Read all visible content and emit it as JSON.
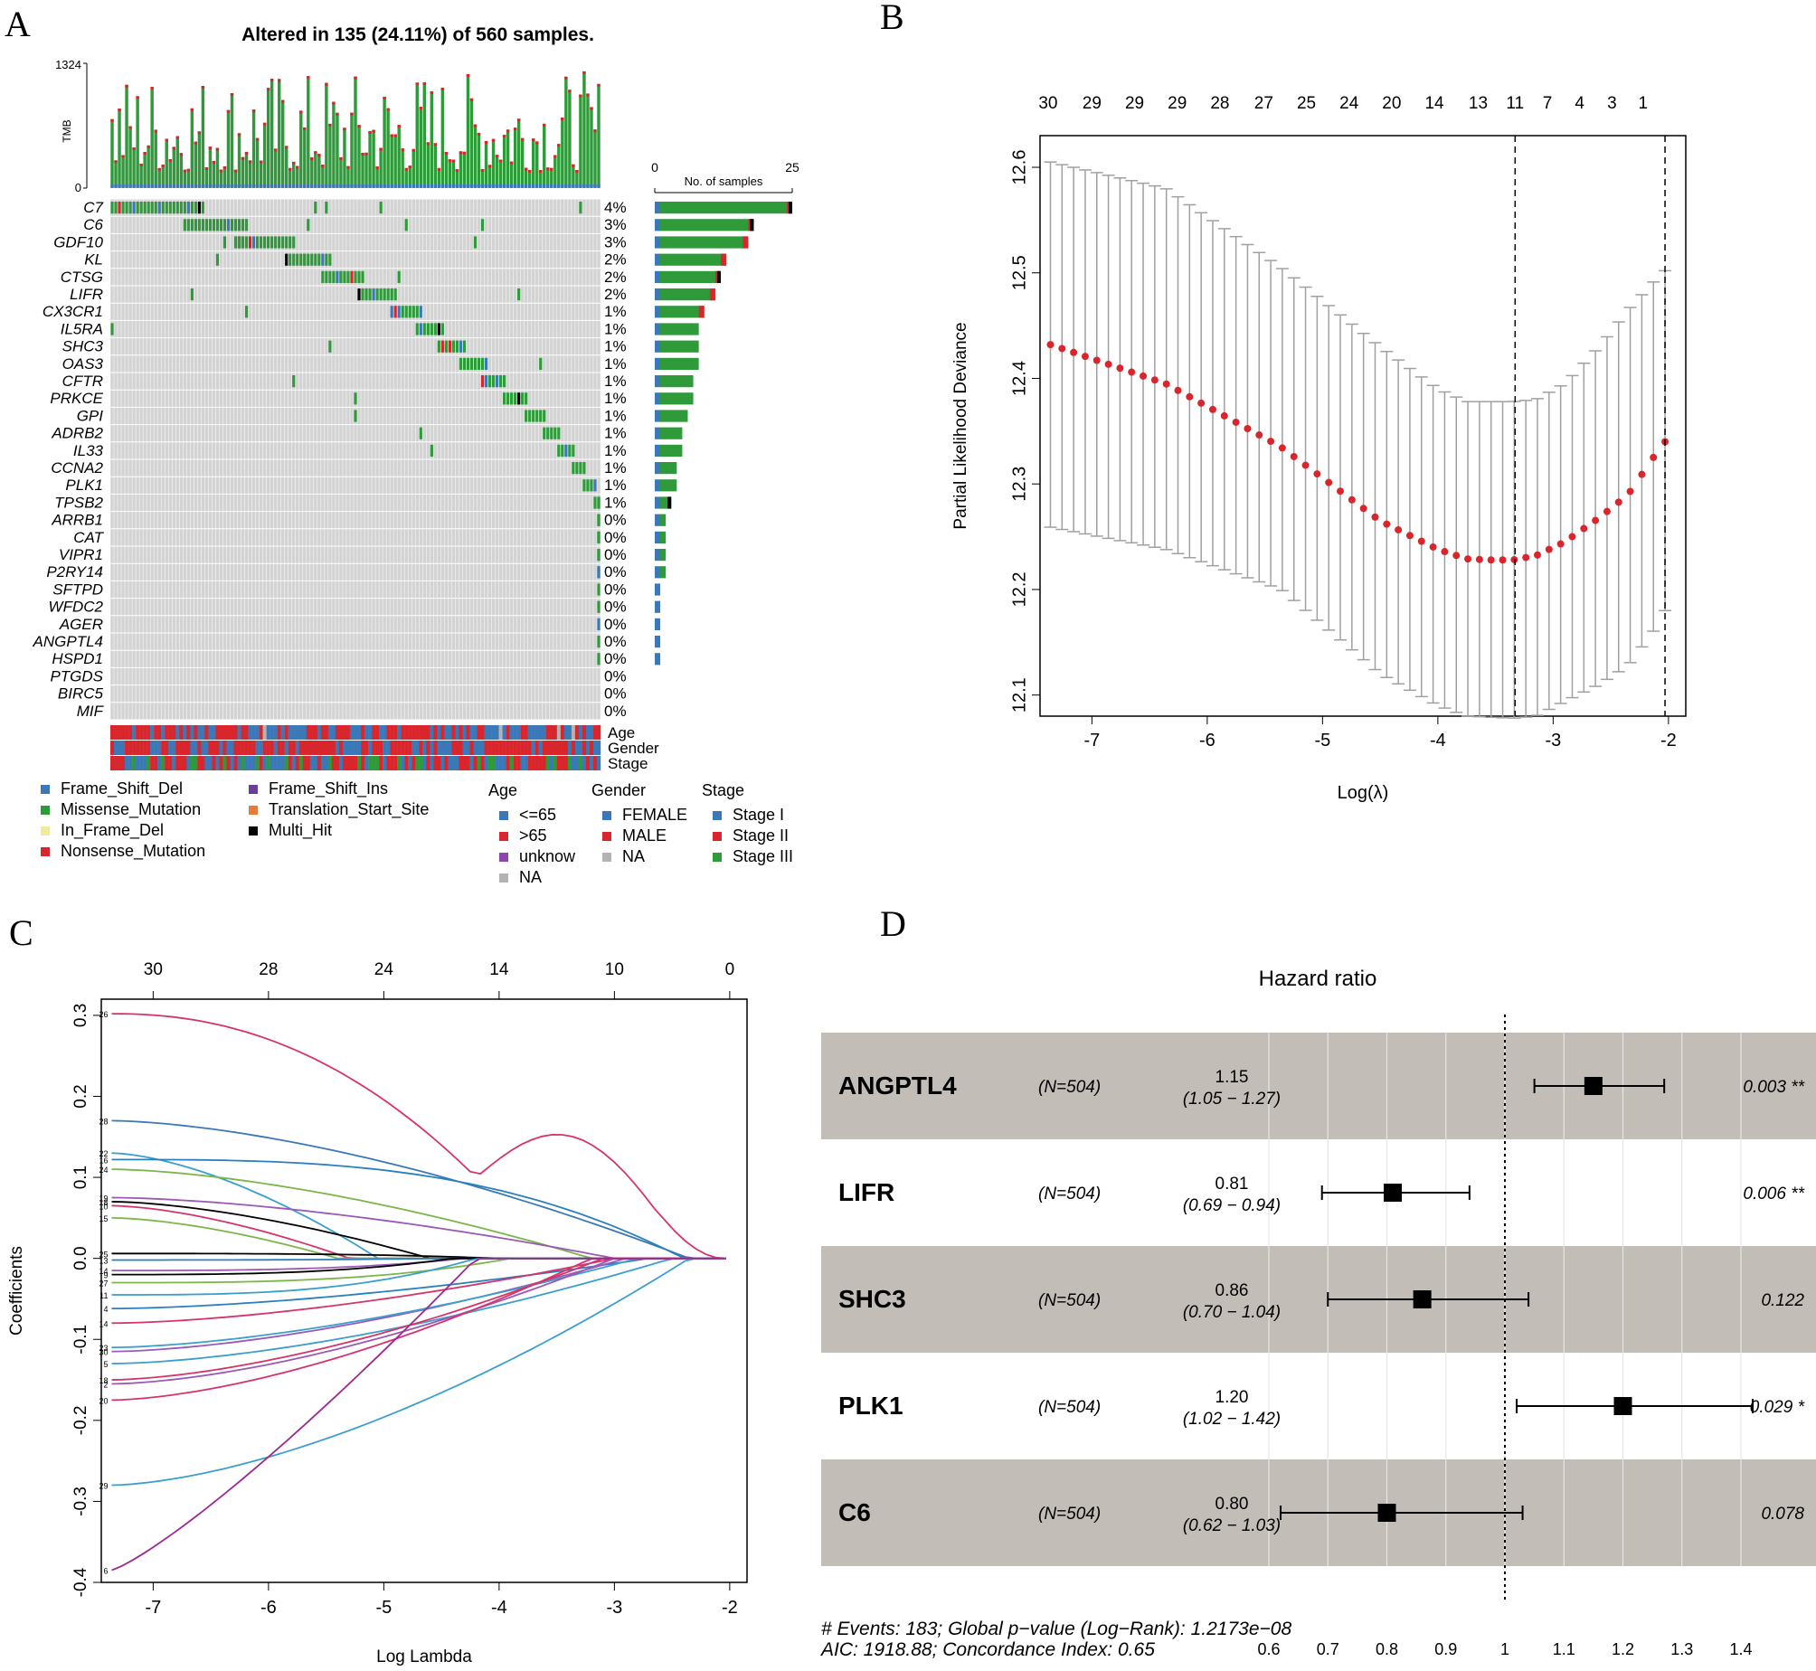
{
  "panel_letters": [
    "A",
    "B",
    "C",
    "D"
  ],
  "colors": {
    "Frame_Shift_Del": "#3a78b8",
    "Missense_Mutation": "#2e9a3a",
    "In_Frame_Del": "#f1ec9c",
    "Nonsense_Mutation": "#d8262c",
    "Frame_Shift_Ins": "#6a3d9a",
    "Translation_Start_Site": "#e67c3a",
    "Multi_Hit": "#000000",
    "grid_bg": "#d3d3d3",
    "age_le65": "#3a78b8",
    "age_gt65": "#d8262c",
    "age_unknow": "#8e44ad",
    "na": "#b3b3b3",
    "female": "#3a78b8",
    "male": "#d8262c",
    "stage1": "#3a78b8",
    "stage2": "#d8262c",
    "stage3": "#2e9a3a",
    "cv_point": "#d8262c",
    "cv_bar": "#a0a0a0",
    "forest_band": "#c2bdb7"
  },
  "chart_data": [
    {
      "panel": "A",
      "type": "heatmap",
      "title": "Altered in 135 (24.11%) of 560 samples.",
      "tmb_label": "TMB",
      "tmb_ticks": [
        "1324",
        "0"
      ],
      "tmb_range": [
        0,
        1324
      ],
      "samples_label": "No. of samples",
      "samples_ticks": [
        "0",
        "25"
      ],
      "samples_range": [
        0,
        25
      ],
      "genes": [
        "C7",
        "C6",
        "GDF10",
        "KL",
        "CTSG",
        "LIFR",
        "CX3CR1",
        "IL5RA",
        "SHC3",
        "OAS3",
        "CFTR",
        "PRKCE",
        "GPI",
        "ADRB2",
        "IL33",
        "CCNA2",
        "PLK1",
        "TPSB2",
        "ARRB1",
        "CAT",
        "VIPR1",
        "P2RY14",
        "SFTPD",
        "WFDC2",
        "AGER",
        "ANGPTL4",
        "HSPD1",
        "PTGDS",
        "BIRC5",
        "MIF"
      ],
      "percents": [
        "4%",
        "3%",
        "3%",
        "2%",
        "2%",
        "2%",
        "1%",
        "1%",
        "1%",
        "1%",
        "1%",
        "1%",
        "1%",
        "1%",
        "1%",
        "1%",
        "1%",
        "1%",
        "0%",
        "0%",
        "0%",
        "0%",
        "0%",
        "0%",
        "0%",
        "0%",
        "0%",
        "0%",
        "0%",
        "0%"
      ],
      "gene_counts": [
        25,
        18,
        17,
        13,
        12,
        11,
        9,
        8,
        8,
        8,
        7,
        7,
        6,
        5,
        5,
        4,
        4,
        3,
        2,
        2,
        2,
        2,
        1,
        1,
        1,
        1,
        1,
        0,
        0,
        0
      ],
      "annotation_tracks": [
        "Age",
        "Gender",
        "Stage"
      ],
      "legend": {
        "variant": [
          "Frame_Shift_Del",
          "Missense_Mutation",
          "In_Frame_Del",
          "Nonsense_Mutation",
          "Frame_Shift_Ins",
          "Translation_Start_Site",
          "Multi_Hit"
        ],
        "age_title": "Age",
        "age": [
          "<=65",
          ">65",
          "unknow",
          "NA"
        ],
        "gender_title": "Gender",
        "gender": [
          "FEMALE",
          "MALE",
          "NA"
        ],
        "stage_title": "Stage",
        "stage": [
          "Stage I",
          "Stage II",
          "Stage III"
        ]
      }
    },
    {
      "panel": "B",
      "type": "scatter",
      "xlabel": "Log(λ)",
      "ylabel": "Partial Likelihood Deviance",
      "xlim": [
        -7.45,
        -1.85
      ],
      "ylim": [
        12.08,
        12.63
      ],
      "x_ticks": [
        "-7",
        "-6",
        "-5",
        "-4",
        "-3",
        "-2"
      ],
      "y_ticks": [
        "12.1",
        "12.2",
        "12.3",
        "12.4",
        "12.5",
        "12.6"
      ],
      "top_ticks": [
        "30",
        "29",
        "29",
        "29",
        "28",
        "27",
        "25",
        "24",
        "20",
        "14",
        "13",
        "11",
        "7",
        "4",
        "3",
        "1"
      ],
      "top_tick_x": [
        -7.38,
        -7.0,
        -6.63,
        -6.26,
        -5.89,
        -5.51,
        -5.14,
        -4.77,
        -4.4,
        -4.03,
        -3.65,
        -3.33,
        -3.05,
        -2.77,
        -2.49,
        -2.22
      ],
      "lambda_min": -3.33,
      "lambda_1se": -2.03,
      "curve": {
        "x": [
          -7.36,
          -6.36,
          -5.36,
          -4.5,
          -4.0,
          -3.75,
          -3.55,
          -3.35,
          -3.15,
          -2.9,
          -2.6,
          -2.35,
          -2.1,
          -2.03
        ],
        "y": [
          12.432,
          12.395,
          12.335,
          12.265,
          12.238,
          12.229,
          12.228,
          12.228,
          12.232,
          12.245,
          12.268,
          12.29,
          12.33,
          12.34
        ],
        "upper": [
          12.605,
          12.58,
          12.505,
          12.43,
          12.39,
          12.378,
          12.378,
          12.378,
          12.38,
          12.395,
          12.43,
          12.465,
          12.495,
          12.502
        ],
        "lower": [
          12.259,
          12.238,
          12.2,
          12.12,
          12.09,
          12.08,
          12.079,
          12.078,
          12.08,
          12.094,
          12.11,
          12.128,
          12.165,
          12.18
        ]
      }
    },
    {
      "panel": "C",
      "type": "line",
      "xlabel": "Log Lambda",
      "ylabel": "Coefficients",
      "xlim": [
        -7.45,
        -1.85
      ],
      "ylim": [
        -0.4,
        0.32
      ],
      "x_ticks": [
        "-7",
        "-6",
        "-5",
        "-4",
        "-3",
        "-2"
      ],
      "y_ticks": [
        "-0.4",
        "-0.3",
        "-0.2",
        "-0.1",
        "0.0",
        "0.1",
        "0.2",
        "0.3"
      ],
      "top_ticks": [
        "30",
        "28",
        "24",
        "14",
        "10",
        "0"
      ],
      "top_tick_x": [
        -7.0,
        -6.0,
        -5.0,
        -4.0,
        -3.0,
        -2.0
      ],
      "series": [
        {
          "name": "26",
          "start": 0.302,
          "end_x": -2.05,
          "color": "#d6336c",
          "shape": "bump"
        },
        {
          "name": "28",
          "start": 0.17,
          "end_x": -2.35,
          "color": "#3a78b8",
          "shape": "decay"
        },
        {
          "name": "22",
          "start": 0.13,
          "end_x": -5.05,
          "color": "#3a9fcf",
          "shape": "decay"
        },
        {
          "name": "16",
          "start": 0.122,
          "end_x": -2.4,
          "color": "#2a7fbf",
          "shape": "flat"
        },
        {
          "name": "24",
          "start": 0.11,
          "end_x": -3.2,
          "color": "#7ab648",
          "shape": "decay"
        },
        {
          "name": "19",
          "start": 0.075,
          "end_x": -3.0,
          "color": "#9b59b6",
          "shape": "decay"
        },
        {
          "name": "18",
          "start": 0.07,
          "end_x": -4.6,
          "color": "#000000",
          "shape": "decay"
        },
        {
          "name": "10",
          "start": 0.065,
          "end_x": -5.3,
          "color": "#d6336c",
          "shape": "decay"
        },
        {
          "name": "15",
          "start": 0.05,
          "end_x": -5.4,
          "color": "#7ab648",
          "shape": "decay"
        },
        {
          "name": "25",
          "start": 0.006,
          "end_x": -4.0,
          "color": "#000000",
          "shape": "flat"
        },
        {
          "name": "13",
          "start": -0.002,
          "end_x": -4.5,
          "color": "#2a7fbf",
          "shape": "flat"
        },
        {
          "name": "14",
          "start": -0.015,
          "end_x": -4.3,
          "color": "#9b59b6",
          "shape": "flat"
        },
        {
          "name": "9",
          "start": -0.02,
          "end_x": -4.4,
          "color": "#000000",
          "shape": "flat"
        },
        {
          "name": "27",
          "start": -0.03,
          "end_x": -3.9,
          "color": "#7ab648",
          "shape": "flat"
        },
        {
          "name": "11",
          "start": -0.045,
          "end_x": -4.2,
          "color": "#3a9fcf",
          "shape": "flat"
        },
        {
          "name": "4",
          "start": -0.062,
          "end_x": -2.7,
          "color": "#2a7fbf",
          "shape": "decay"
        },
        {
          "name": "14",
          "start": -0.08,
          "end_x": -3.0,
          "color": "#d6336c",
          "shape": "decay"
        },
        {
          "name": "30",
          "start": -0.115,
          "end_x": -2.9,
          "color": "#9b59b6",
          "shape": "decay"
        },
        {
          "name": "23",
          "start": -0.11,
          "end_x": -2.8,
          "color": "#3a9fcf",
          "shape": "decay"
        },
        {
          "name": "5",
          "start": -0.13,
          "end_x": -2.5,
          "color": "#3a9fcf",
          "shape": "decay"
        },
        {
          "name": "18",
          "start": -0.15,
          "end_x": -3.1,
          "color": "#d6336c",
          "shape": "decay"
        },
        {
          "name": "2",
          "start": -0.155,
          "end_x": -3.0,
          "color": "#9b59b6",
          "shape": "decay"
        },
        {
          "name": "20",
          "start": -0.175,
          "end_x": -3.2,
          "color": "#d6336c",
          "shape": "decay"
        },
        {
          "name": "29",
          "start": -0.28,
          "end_x": -2.35,
          "color": "#3a9fcf",
          "shape": "decay"
        },
        {
          "name": "6",
          "start": -0.385,
          "end_x": -4.2,
          "color": "#9b2a8f",
          "shape": "rise"
        }
      ]
    },
    {
      "panel": "D",
      "type": "table",
      "title": "Hazard ratio",
      "xlim": [
        0.6,
        1.4
      ],
      "x_ticks": [
        "0.6",
        "0.7",
        "0.8",
        "0.9",
        "1",
        "1.1",
        "1.2",
        "1.3",
        "1.4"
      ],
      "x_tick_values": [
        0.6,
        0.7,
        0.8,
        0.9,
        1.0,
        1.1,
        1.2,
        1.3,
        1.4
      ],
      "rows": [
        {
          "gene": "ANGPTL4",
          "n": "(N=504)",
          "hr_text": "1.15",
          "ci_text": "(1.05 − 1.27)",
          "p": "0.003 **",
          "hr": 1.15,
          "lo": 1.05,
          "hi": 1.27,
          "shaded": true
        },
        {
          "gene": "LIFR",
          "n": "(N=504)",
          "hr_text": "0.81",
          "ci_text": "(0.69 − 0.94)",
          "p": "0.006 **",
          "hr": 0.81,
          "lo": 0.69,
          "hi": 0.94,
          "shaded": false
        },
        {
          "gene": "SHC3",
          "n": "(N=504)",
          "hr_text": "0.86",
          "ci_text": "(0.70 − 1.04)",
          "p": "0.122",
          "hr": 0.86,
          "lo": 0.7,
          "hi": 1.04,
          "shaded": true
        },
        {
          "gene": "PLK1",
          "n": "(N=504)",
          "hr_text": "1.20",
          "ci_text": "(1.02 − 1.42)",
          "p": "0.029 *",
          "hr": 1.2,
          "lo": 1.02,
          "hi": 1.42,
          "shaded": false
        },
        {
          "gene": "C6",
          "n": "(N=504)",
          "hr_text": "0.80",
          "ci_text": "(0.62 − 1.03)",
          "p": "0.078",
          "hr": 0.8,
          "lo": 0.62,
          "hi": 1.03,
          "shaded": true
        }
      ],
      "footer_1": "# Events: 183; Global p−value (Log−Rank): 1.2173e−08",
      "footer_2": "AIC: 1918.88; Concordance Index: 0.65"
    }
  ]
}
